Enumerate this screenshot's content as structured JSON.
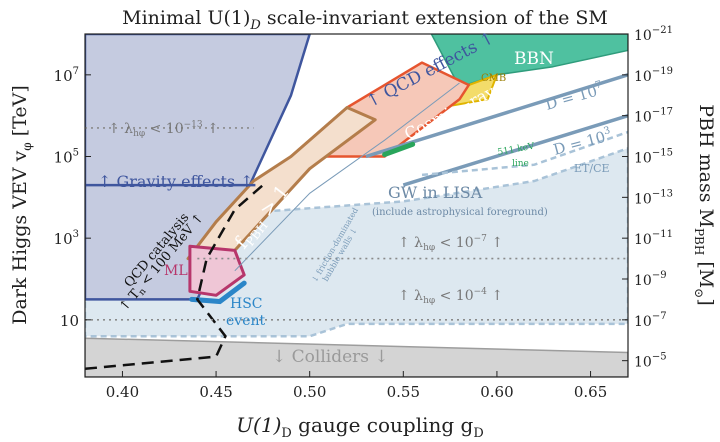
{
  "chart_data": {
    "type": "area",
    "title": "Minimal U(1)_D scale-invariant extension of the SM",
    "xlabel": "U(1)_D gauge coupling g_D",
    "ylabel": "Dark Higgs VEV v_φ [TeV]",
    "y2label": "PBH mass M_PBH [M_⊙]",
    "xlim": [
      0.38,
      0.67
    ],
    "ylim_log10": [
      -0.4,
      8.0
    ],
    "xticks": [
      0.4,
      0.45,
      0.5,
      0.55,
      0.6,
      0.65
    ],
    "xtick_labels": [
      "0.40",
      "0.45",
      "0.50",
      "0.55",
      "0.60",
      "0.65"
    ],
    "yticks_log10": [
      1,
      3,
      5,
      7
    ],
    "ytick_labels": [
      "10",
      "10^3",
      "10^5",
      "10^7"
    ],
    "y2ticks_labels": [
      "10^-5",
      "10^-7",
      "10^-9",
      "10^-11",
      "10^-13",
      "10^-15",
      "10^-17",
      "10^-19",
      "10^-21"
    ],
    "y2ticks_log10_vev": [
      0.0,
      1.0,
      2.0,
      3.0,
      4.0,
      5.0,
      6.0,
      7.0,
      8.0
    ],
    "colors": {
      "qcd": "#c5cbe0",
      "qcd_line": "#3f569e",
      "bbn": "#4fc1a0",
      "cmb": "#e0b400",
      "cosmic": "#e6552f",
      "cosmic_fill": "#f6c8b8",
      "gw": "#dde8f0",
      "dline": "#7a9bb8",
      "fpbh": "#b47d4b",
      "fpbh_fill": "#f4dfcd",
      "ml": "#b7366b",
      "ml_fill": "#efc6d6",
      "hsc": "#2b86c8",
      "colliders": "#d4d4d4",
      "kev": "#29a55b"
    },
    "regions": [
      {
        "name": "QCD effects",
        "points": [
          [
            0.38,
            1.5
          ],
          [
            0.44,
            1.5
          ],
          [
            0.47,
            4.5
          ],
          [
            0.49,
            6.5
          ],
          [
            0.5,
            8.0
          ],
          [
            0.38,
            8.0
          ]
        ]
      },
      {
        "name": "Gravity effects",
        "points": [
          [
            0.38,
            4.3
          ],
          [
            0.471,
            4.3
          ]
        ]
      },
      {
        "name": "BBN",
        "points": [
          [
            0.565,
            8.0
          ],
          [
            0.67,
            8.0
          ],
          [
            0.67,
            7.6
          ],
          [
            0.63,
            7.2
          ],
          [
            0.6,
            7.0
          ],
          [
            0.58,
            6.7
          ]
        ]
      },
      {
        "name": "CMB",
        "points": [
          [
            0.585,
            6.75
          ],
          [
            0.6,
            7.0
          ],
          [
            0.595,
            6.4
          ],
          [
            0.57,
            6.2
          ]
        ]
      },
      {
        "name": "Cosmic-rays",
        "points": [
          [
            0.49,
            5.0
          ],
          [
            0.54,
            5.0
          ],
          [
            0.58,
            6.4
          ],
          [
            0.585,
            6.75
          ],
          [
            0.56,
            7.3
          ],
          [
            0.52,
            6.2
          ]
        ]
      },
      {
        "name": "f_PBH > 1",
        "points": [
          [
            0.435,
            2.5
          ],
          [
            0.45,
            3.4
          ],
          [
            0.47,
            4.4
          ],
          [
            0.49,
            5.0
          ],
          [
            0.52,
            6.2
          ],
          [
            0.535,
            5.9
          ],
          [
            0.5,
            4.7
          ],
          [
            0.48,
            3.7
          ],
          [
            0.46,
            2.7
          ],
          [
            0.45,
            2.4
          ]
        ]
      },
      {
        "name": "ML",
        "points": [
          [
            0.436,
            1.7
          ],
          [
            0.436,
            2.8
          ],
          [
            0.46,
            2.7
          ],
          [
            0.465,
            2.1
          ],
          [
            0.45,
            1.6
          ]
        ]
      },
      {
        "name": "HSC event",
        "points": [
          [
            0.437,
            1.5
          ],
          [
            0.452,
            1.45
          ],
          [
            0.465,
            1.9
          ]
        ]
      },
      {
        "name": "GW in LISA",
        "points": [
          [
            0.38,
            3.3
          ],
          [
            0.46,
            3.6
          ],
          [
            0.55,
            3.9
          ],
          [
            0.62,
            4.4
          ],
          [
            0.67,
            5.2
          ],
          [
            0.67,
            0.9
          ],
          [
            0.52,
            0.9
          ],
          [
            0.5,
            0.6
          ],
          [
            0.38,
            0.6
          ]
        ]
      },
      {
        "name": "Colliders",
        "points": [
          [
            0.38,
            -0.4
          ],
          [
            0.67,
            -0.4
          ],
          [
            0.67,
            0.2
          ],
          [
            0.38,
            0.55
          ]
        ]
      }
    ],
    "lines": [
      {
        "name": "D = 10^7",
        "points": [
          [
            0.53,
            5.0
          ],
          [
            0.67,
            7.0
          ]
        ]
      },
      {
        "name": "D = 10^3",
        "points": [
          [
            0.55,
            4.3
          ],
          [
            0.67,
            6.0
          ]
        ]
      },
      {
        "name": "QCD catalysis T_n < 100 MeV",
        "points": [
          [
            0.38,
            -0.2
          ],
          [
            0.45,
            0.1
          ],
          [
            0.455,
            0.6
          ],
          [
            0.44,
            1.5
          ],
          [
            0.445,
            2.5
          ],
          [
            0.46,
            3.7
          ],
          [
            0.475,
            4.3
          ]
        ]
      },
      {
        "name": "friction-dominated bubble walls",
        "points": [
          [
            0.46,
            2.2
          ],
          [
            0.5,
            4.1
          ],
          [
            0.54,
            5.4
          ],
          [
            0.58,
            6.8
          ]
        ]
      }
    ],
    "hlines": [
      {
        "name": "λ_hφ < 10^-13",
        "y_log10": 5.7
      },
      {
        "name": "λ_hφ < 10^-7",
        "y_log10": 2.5
      },
      {
        "name": "λ_hφ < 10^-4",
        "y_log10": 1.0
      }
    ]
  },
  "labels": {
    "title": "Minimal U(1)",
    "title_sub": "D",
    "title_rest": " scale-invariant extension of the SM",
    "xlabel_main": "U(1)",
    "xlabel_sub": "D",
    "xlabel_rest": " gauge coupling g",
    "xlabel_sub2": "D",
    "ylabel_main": "Dark Higgs VEV v",
    "ylabel_sub": "φ",
    "ylabel_rest": " [TeV]",
    "y2label_main": "PBH mass M",
    "y2label_sub": "PBH",
    "y2label_rest": " [M",
    "y2label_sun": "⊙",
    "y2label_end": "]",
    "qcd": "↑ QCD effects ↑",
    "gravity": "↑ Gravity effects ↑",
    "bbn": "BBN",
    "cmb": "CMB",
    "cosmic": "Cosmic−rays",
    "kev": "511 keV",
    "kev_line": "line",
    "d7": "D = 10",
    "d7_exp": "7",
    "d3": "D = 10",
    "d3_exp": "3",
    "etce": "ET/CE",
    "gw": "GW in LISA",
    "gw_sub": "(include astrophysical foreground)",
    "fpbh": "f",
    "fpbh_sub": "PBH",
    "fpbh_rest": " > 1",
    "ml": "ML",
    "hsc": "HSC",
    "hsc2": "event",
    "colliders": "↓ Colliders ↓",
    "qcd_cat1": "QCD catalysis",
    "qcd_cat2": "↑ T",
    "qcd_cat2_sub": "n",
    "qcd_cat2_rest": " < 100 MeV ↑",
    "friction": "↓ friction-dominated",
    "friction2": "bubble walls ↓",
    "lam13": "↑ λ",
    "lam13_sub": "hφ",
    "lam13_rest": " < 10",
    "lam13_exp": "−13",
    "lam13_end": " ↑",
    "lam7": "↑ λ",
    "lam7_sub": "hφ",
    "lam7_rest": " < 10",
    "lam7_exp": "−7",
    "lam7_end": " ↑",
    "lam4": "↑ λ",
    "lam4_sub": "hφ",
    "lam4_rest": " < 10",
    "lam4_exp": "−4",
    "lam4_end": " ↑"
  }
}
